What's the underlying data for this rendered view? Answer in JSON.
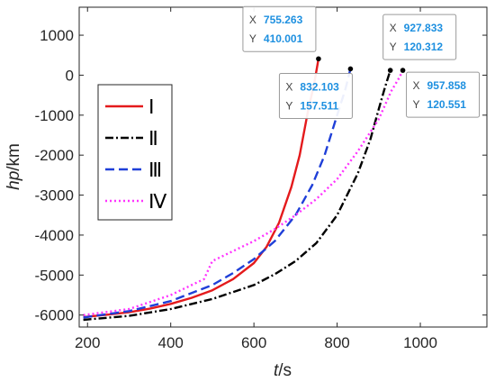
{
  "chart_data": {
    "type": "line",
    "xlabel_italic": "t",
    "xlabel_unit": "/s",
    "ylabel_italic": "hp",
    "ylabel_unit": "/km",
    "xlim": [
      180,
      1160
    ],
    "ylim": [
      -6300,
      1700
    ],
    "xticks": [
      200,
      400,
      600,
      800,
      1000
    ],
    "yticks": [
      -6000,
      -5000,
      -4000,
      -3000,
      -2000,
      -1000,
      0,
      1000
    ],
    "grid": false,
    "legend": "left-center",
    "series": [
      {
        "name": "Ⅰ",
        "color": "#e41a1c",
        "dash": "solid",
        "x": [
          190,
          250,
          300,
          350,
          400,
          450,
          500,
          550,
          600,
          630,
          660,
          690,
          710,
          730,
          745,
          755.263
        ],
        "y": [
          -6050,
          -5990,
          -5930,
          -5840,
          -5720,
          -5570,
          -5380,
          -5100,
          -4700,
          -4300,
          -3700,
          -2800,
          -2000,
          -900,
          -200,
          410.001
        ]
      },
      {
        "name": "Ⅱ",
        "color": "#000000",
        "dash": "dashdot",
        "x": [
          190,
          300,
          400,
          500,
          600,
          650,
          700,
          750,
          800,
          850,
          880,
          900,
          915,
          927.833
        ],
        "y": [
          -6120,
          -6020,
          -5850,
          -5600,
          -5250,
          -4980,
          -4650,
          -4200,
          -3500,
          -2450,
          -1600,
          -850,
          -300,
          120.312
        ]
      },
      {
        "name": "Ⅲ",
        "color": "#1f3fd8",
        "dash": "dashed",
        "x": [
          190,
          300,
          400,
          500,
          550,
          600,
          650,
          700,
          740,
          770,
          800,
          820,
          832.103
        ],
        "y": [
          -6060,
          -5900,
          -5650,
          -5250,
          -4950,
          -4600,
          -4150,
          -3500,
          -2750,
          -2000,
          -1000,
          -350,
          157.511
        ]
      },
      {
        "name": "Ⅳ",
        "color": "#ff33ff",
        "dash": "dotted",
        "x": [
          190,
          300,
          400,
          480,
          500,
          540,
          600,
          650,
          700,
          750,
          800,
          850,
          900,
          930,
          950,
          957.858
        ],
        "y": [
          -6000,
          -5850,
          -5500,
          -5100,
          -4650,
          -4450,
          -4150,
          -3850,
          -3500,
          -3100,
          -2600,
          -1900,
          -1100,
          -400,
          -50,
          120.551
        ]
      }
    ],
    "datatips": [
      {
        "series": "Ⅰ",
        "x_label": "X",
        "y_label": "Y",
        "x": "755.263",
        "y": "410.001",
        "position": "above-left"
      },
      {
        "series": "Ⅲ",
        "x_label": "X",
        "y_label": "Y",
        "x": "832.103",
        "y": "157.511",
        "position": "below-left"
      },
      {
        "series": "Ⅱ",
        "x_label": "X",
        "y_label": "Y",
        "x": "927.833",
        "y": "120.312",
        "position": "above"
      },
      {
        "series": "Ⅳ",
        "x_label": "X",
        "y_label": "Y",
        "x": "957.858",
        "y": "120.551",
        "position": "below"
      }
    ]
  }
}
